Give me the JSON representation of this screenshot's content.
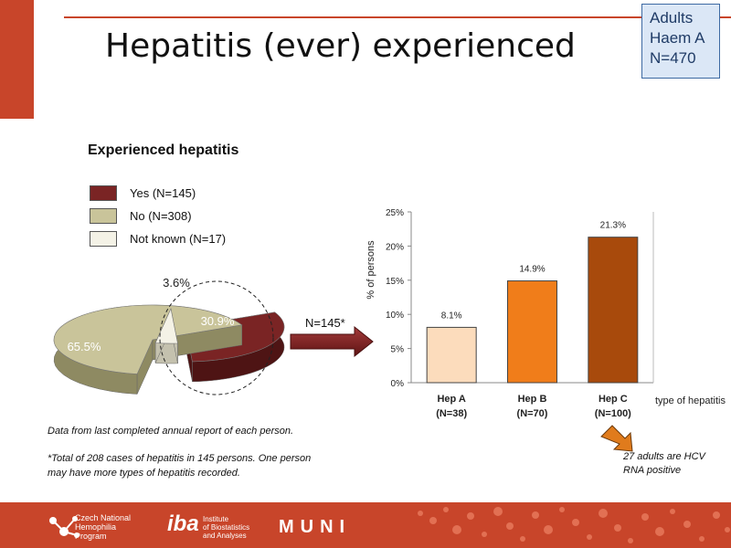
{
  "slide": {
    "title": "Hepatitis (ever) experienced",
    "corner_box": [
      "Adults",
      "Haem A",
      "N=470"
    ]
  },
  "pie_section": {
    "title": "Experienced hepatitis",
    "legend": [
      {
        "label": "Yes (N=145)",
        "color": "#7a2424"
      },
      {
        "label": "No (N=308)",
        "color": "#c9c49a"
      },
      {
        "label": "Not known (N=17)",
        "color": "#f4f2e6"
      }
    ]
  },
  "arrow_label": "N=145*",
  "notes": {
    "data_source": "Data from last completed annual report of each person.",
    "total_cases": "*Total of 208 cases of hepatitis in 145 persons. One person may have more types of hepatitis recorded.",
    "hcv": "27 adults are HCV RNA positive"
  },
  "footer": {
    "logo1": [
      "Czech National",
      "Hemophilia",
      "Program"
    ],
    "logo2_mark": "iba",
    "logo2": [
      "Institute",
      "of Biostatistics",
      "and Analyses"
    ],
    "logo3": "MUNI"
  },
  "chart_data": [
    {
      "type": "pie",
      "title": "Experienced hepatitis",
      "categories": [
        "Yes (N=145)",
        "No (N=308)",
        "Not known (N=17)"
      ],
      "values": [
        30.9,
        65.5,
        3.6
      ],
      "labels": [
        "30.9%",
        "65.5%",
        "3.6%"
      ],
      "colors": [
        "#7a2424",
        "#c9c49a",
        "#f4f2e6"
      ],
      "legend": "top-left"
    },
    {
      "type": "bar",
      "categories": [
        "Hep A",
        "Hep B",
        "Hep C"
      ],
      "category_sublabels": [
        "(N=38)",
        "(N=70)",
        "(N=100)"
      ],
      "values": [
        8.1,
        14.9,
        21.3
      ],
      "labels": [
        "8.1%",
        "14.9%",
        "21.3%"
      ],
      "colors": [
        "#fcdcbc",
        "#f07d1a",
        "#a84a0c"
      ],
      "xlabel": "type of hepatitis",
      "ylabel": "% of persons",
      "ylim": [
        0,
        25
      ],
      "yticks": [
        "0%",
        "5%",
        "10%",
        "15%",
        "20%",
        "25%"
      ],
      "grid": false
    }
  ]
}
